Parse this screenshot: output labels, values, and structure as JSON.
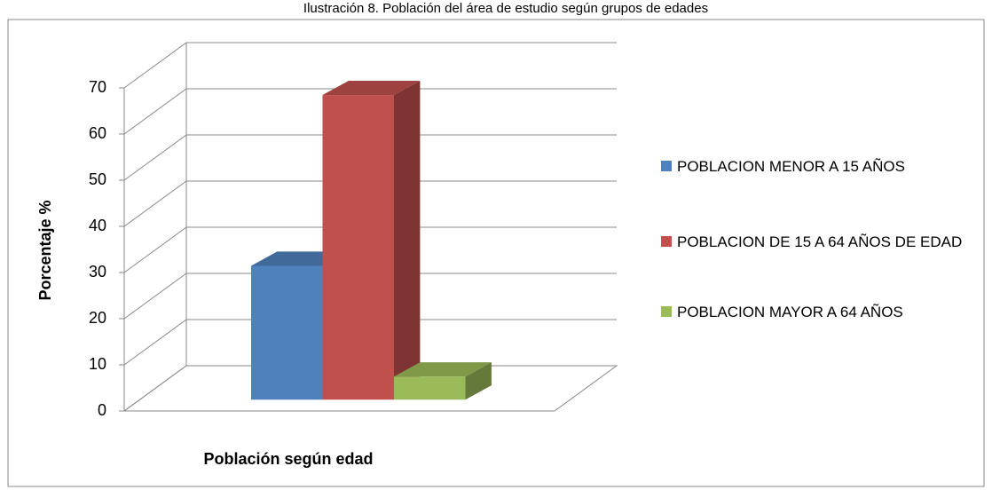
{
  "chart_data": {
    "type": "bar3d",
    "title": "Ilustración 8. Población del área de estudio según grupos de edades",
    "xlabel": "Población según edad",
    "ylabel": "Porcentaje %",
    "series": [
      {
        "name": "POBLACION MENOR A 15 AÑOS",
        "color": "#4f81bd",
        "values": [
          29
        ]
      },
      {
        "name": "POBLACION DE 15 A 64 AÑOS DE EDAD",
        "color": "#c0504d",
        "values": [
          66
        ]
      },
      {
        "name": "POBLACION MAYOR A 64 AÑOS",
        "color": "#9bbb59",
        "values": [
          5
        ]
      }
    ],
    "ylim": [
      0,
      70
    ],
    "yticks": [
      0,
      10,
      20,
      30,
      40,
      50,
      60,
      70
    ],
    "grid": true,
    "legend": "right"
  }
}
